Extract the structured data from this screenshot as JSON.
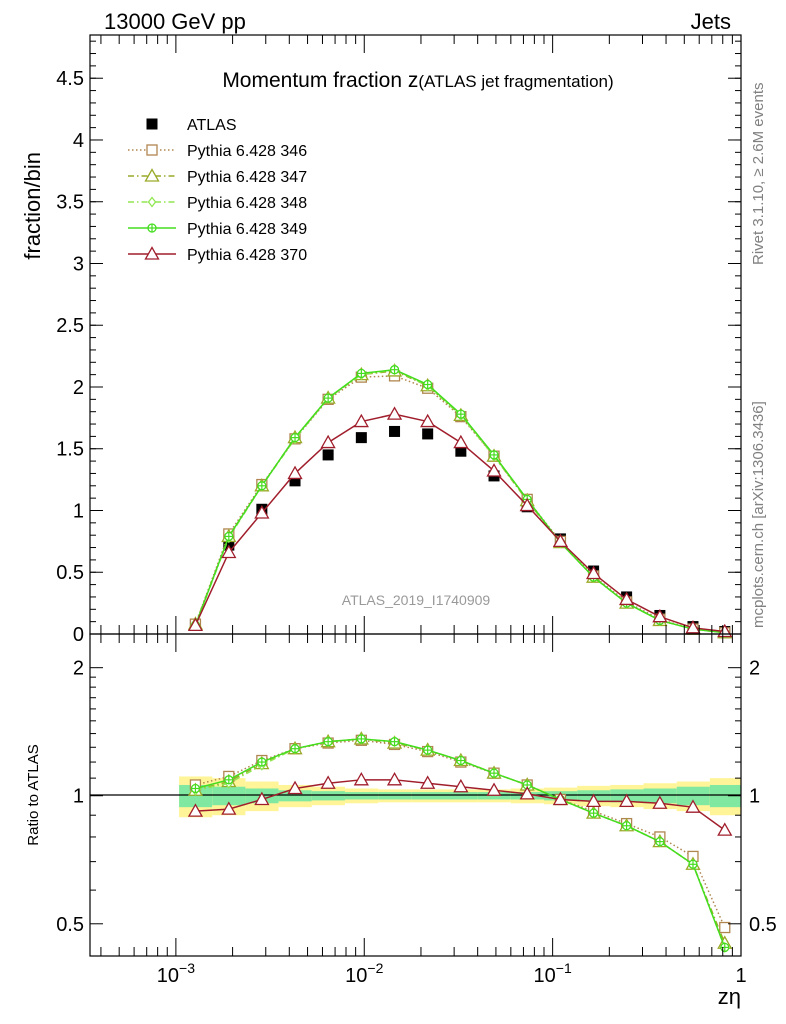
{
  "header": {
    "energy": "13000 GeV pp",
    "process": "Jets"
  },
  "side_labels": {
    "rivet": "Rivet 3.1.10, ≥ 2.6M events",
    "source": "mcplots.cern.ch [arXiv:1306.3436]"
  },
  "chart_data": [
    {
      "type": "line",
      "panel": "main",
      "title": "Momentum fraction z",
      "subtitle": "(ATLAS jet fragmentation)",
      "analysis_label": "ATLAS_2019_I1740909",
      "xlabel": "zη",
      "ylabel": "fraction/bin",
      "x_scale": "log",
      "xlim": [
        0.00035,
        1.0
      ],
      "ylim": [
        0,
        4.85
      ],
      "y_ticks": [
        0,
        0.5,
        1,
        1.5,
        2,
        2.5,
        3,
        3.5,
        4,
        4.5
      ],
      "y_tick_labels": [
        "0",
        "0.5",
        "1",
        "1.5",
        "2",
        "2.5",
        "3",
        "3.5",
        "4",
        "4.5"
      ],
      "legend_position": "top-left",
      "x": [
        0.00127,
        0.00191,
        0.00286,
        0.00429,
        0.00643,
        0.00965,
        0.01448,
        0.02171,
        0.03257,
        0.04885,
        0.07328,
        0.11,
        0.165,
        0.247,
        0.371,
        0.556,
        0.82
      ],
      "series": [
        {
          "name": "ATLAS",
          "color": "#000000",
          "marker": "filled-square",
          "line": "none",
          "values": [
            0.07,
            0.72,
            1.01,
            1.24,
            1.45,
            1.59,
            1.64,
            1.62,
            1.48,
            1.28,
            1.03,
            0.77,
            0.51,
            0.3,
            0.15,
            0.06,
            0.02
          ]
        },
        {
          "name": "Pythia 6.428 346",
          "color": "#b08650",
          "marker": "open-square",
          "line": "dotted",
          "values": [
            0.08,
            0.81,
            1.21,
            1.58,
            1.9,
            2.08,
            2.09,
            1.99,
            1.76,
            1.44,
            1.09,
            0.75,
            0.47,
            0.26,
            0.12,
            0.04,
            0.01
          ]
        },
        {
          "name": "Pythia 6.428 347",
          "color": "#9aaa28",
          "marker": "open-triangle",
          "line": "dashdot",
          "values": [
            0.08,
            0.79,
            1.2,
            1.59,
            1.91,
            2.1,
            2.13,
            2.01,
            1.77,
            1.44,
            1.08,
            0.74,
            0.46,
            0.25,
            0.11,
            0.04,
            0.01
          ]
        },
        {
          "name": "Pythia 6.428 348",
          "color": "#90e650",
          "marker": "open-diamond",
          "line": "dashdot",
          "values": [
            0.07,
            0.78,
            1.2,
            1.58,
            1.91,
            2.1,
            2.14,
            2.01,
            1.77,
            1.44,
            1.09,
            0.74,
            0.46,
            0.25,
            0.11,
            0.04,
            0.01
          ]
        },
        {
          "name": "Pythia 6.428 349",
          "color": "#44dd1e",
          "marker": "open-circle-cross",
          "line": "solid",
          "values": [
            0.07,
            0.79,
            1.2,
            1.59,
            1.91,
            2.11,
            2.14,
            2.02,
            1.78,
            1.45,
            1.09,
            0.74,
            0.46,
            0.25,
            0.11,
            0.04,
            0.01
          ]
        },
        {
          "name": "Pythia 6.428 370",
          "color": "#a01e2c",
          "marker": "open-triangle",
          "line": "solid",
          "values": [
            0.07,
            0.66,
            0.98,
            1.3,
            1.55,
            1.72,
            1.78,
            1.72,
            1.55,
            1.32,
            1.04,
            0.75,
            0.49,
            0.28,
            0.14,
            0.05,
            0.02
          ]
        }
      ]
    },
    {
      "type": "line",
      "panel": "ratio",
      "ylabel": "Ratio to ATLAS",
      "xlabel": "zη",
      "x_scale": "log",
      "y_scale": "log",
      "xlim": [
        0.00035,
        1.0
      ],
      "ylim": [
        0.42,
        2.4
      ],
      "y_ticks": [
        0.5,
        1,
        2
      ],
      "y_tick_labels": [
        "0.5",
        "1",
        "2"
      ],
      "x_ticks": [
        0.001,
        0.01,
        0.1,
        1
      ],
      "x_tick_labels": [
        "10",
        "10",
        "10",
        "1"
      ],
      "x_tick_exponents": [
        "−3",
        "−2",
        "−1",
        ""
      ],
      "reference_line": 1,
      "bands": {
        "inner_color": "#80e8a0",
        "outer_color": "#fff598",
        "x_edges": [
          0.00104,
          0.00156,
          0.00234,
          0.00351,
          0.00527,
          0.0079,
          0.01185,
          0.01778,
          0.02667,
          0.04,
          0.06,
          0.09,
          0.135,
          0.2025,
          0.3038,
          0.4556,
          0.6834,
          1.0
        ],
        "inner_half_width": [
          0.06,
          0.05,
          0.04,
          0.03,
          0.025,
          0.02,
          0.02,
          0.02,
          0.02,
          0.02,
          0.02,
          0.025,
          0.03,
          0.035,
          0.04,
          0.05,
          0.06
        ],
        "outer_half_width": [
          0.11,
          0.1,
          0.08,
          0.06,
          0.05,
          0.04,
          0.035,
          0.035,
          0.035,
          0.035,
          0.04,
          0.045,
          0.055,
          0.06,
          0.07,
          0.08,
          0.1
        ]
      },
      "x": [
        0.00127,
        0.00191,
        0.00286,
        0.00429,
        0.00643,
        0.00965,
        0.01448,
        0.02171,
        0.03257,
        0.04885,
        0.07328,
        0.11,
        0.165,
        0.247,
        0.371,
        0.556,
        0.82
      ],
      "series": [
        {
          "name": "Pythia 6.428 346",
          "color": "#b08650",
          "marker": "open-square",
          "line": "dotted",
          "values": [
            1.06,
            1.11,
            1.21,
            1.29,
            1.33,
            1.35,
            1.32,
            1.27,
            1.2,
            1.13,
            1.06,
            0.98,
            0.92,
            0.86,
            0.8,
            0.72,
            0.49
          ]
        },
        {
          "name": "Pythia 6.428 347",
          "color": "#9aaa28",
          "marker": "open-triangle",
          "line": "dashdot",
          "values": [
            1.03,
            1.08,
            1.19,
            1.29,
            1.34,
            1.36,
            1.33,
            1.28,
            1.21,
            1.13,
            1.06,
            0.98,
            0.91,
            0.85,
            0.78,
            0.69,
            0.45
          ]
        },
        {
          "name": "Pythia 6.428 348",
          "color": "#90e650",
          "marker": "open-diamond",
          "line": "dashdot",
          "values": [
            1.03,
            1.07,
            1.18,
            1.29,
            1.34,
            1.36,
            1.34,
            1.28,
            1.21,
            1.13,
            1.06,
            0.98,
            0.91,
            0.85,
            0.78,
            0.69,
            0.44
          ]
        },
        {
          "name": "Pythia 6.428 349",
          "color": "#44dd1e",
          "marker": "open-circle-cross",
          "line": "solid",
          "values": [
            1.04,
            1.09,
            1.2,
            1.29,
            1.34,
            1.36,
            1.34,
            1.28,
            1.21,
            1.13,
            1.06,
            0.98,
            0.91,
            0.85,
            0.78,
            0.69,
            0.44
          ]
        },
        {
          "name": "Pythia 6.428 370",
          "color": "#a01e2c",
          "marker": "open-triangle",
          "line": "solid",
          "values": [
            0.92,
            0.93,
            0.98,
            1.04,
            1.07,
            1.09,
            1.09,
            1.07,
            1.05,
            1.03,
            1.01,
            0.98,
            0.97,
            0.97,
            0.96,
            0.94,
            0.83
          ]
        }
      ]
    }
  ]
}
